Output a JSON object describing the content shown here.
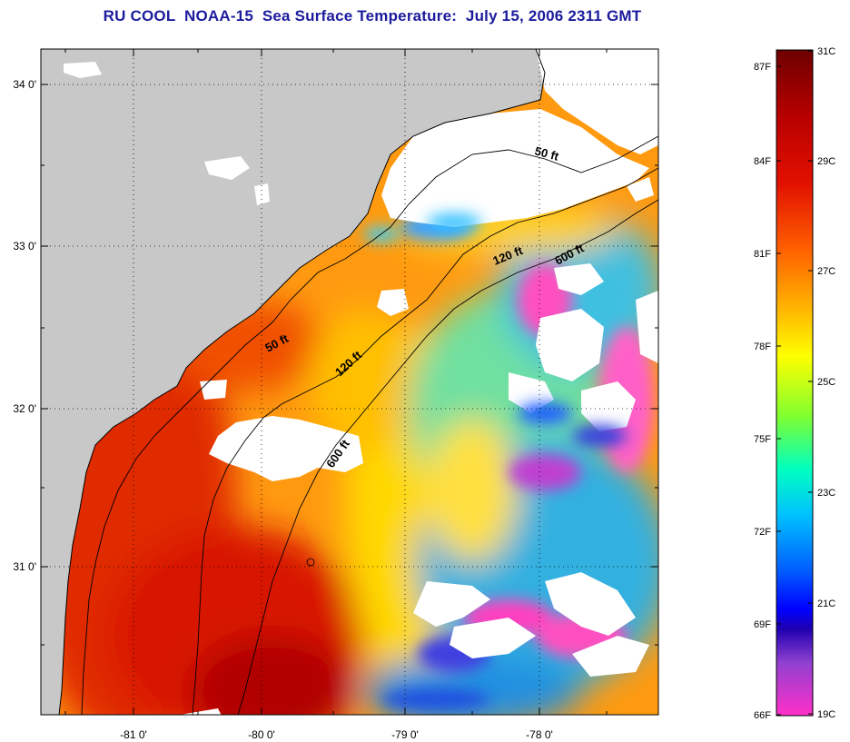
{
  "title": "RU COOL  NOAA-15  Sea Surface Temperature:  July 15, 2006 2311 GMT",
  "axes": {
    "lon_labels": [
      "-81 0'",
      "-80 0'",
      "-79 0'",
      "-78 0'"
    ],
    "lat_labels": [
      "34 0'",
      "33 0'",
      "32 0'",
      "31 0'"
    ]
  },
  "contours": {
    "labels": [
      {
        "id": "50ft-north",
        "text": "50 ft"
      },
      {
        "id": "120ft-north",
        "text": "120 ft"
      },
      {
        "id": "600ft-north",
        "text": "600 ft"
      },
      {
        "id": "50ft-south",
        "text": "50 ft"
      },
      {
        "id": "120ft-south",
        "text": "120 ft"
      },
      {
        "id": "600ft-south",
        "text": "600 ft"
      }
    ]
  },
  "colorbar": {
    "fahrenheit": [
      "87F",
      "84F",
      "81F",
      "78F",
      "75F",
      "72F",
      "69F",
      "66F"
    ],
    "celsius": [
      "31C",
      "29C",
      "27C",
      "25C",
      "23C",
      "21C",
      "19C"
    ],
    "colors": [
      "#7a0000",
      "#d40000",
      "#ff5a00",
      "#ffa000",
      "#ffff00",
      "#80ff40",
      "#00ffcc",
      "#00aaff",
      "#0030ff",
      "#0000c8",
      "#8030d0",
      "#ff30c0"
    ]
  },
  "colors": {
    "land": "#c8c8c8",
    "cloud": "#ffffff",
    "title": "#1c1c9e"
  }
}
